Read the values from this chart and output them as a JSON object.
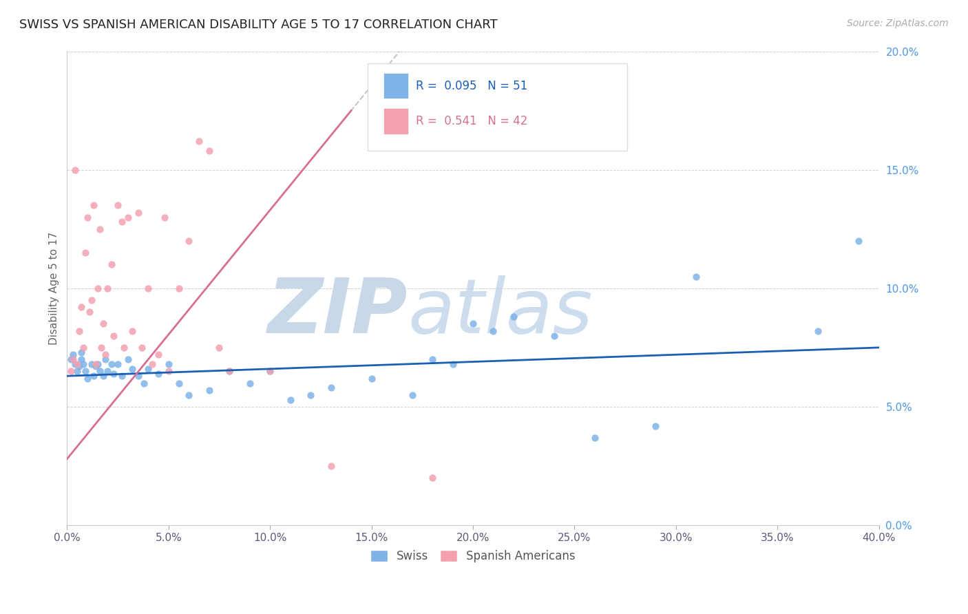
{
  "title": "SWISS VS SPANISH AMERICAN DISABILITY AGE 5 TO 17 CORRELATION CHART",
  "source_text": "Source: ZipAtlas.com",
  "ylabel": "Disability Age 5 to 17",
  "xlim": [
    0.0,
    0.4
  ],
  "ylim": [
    0.0,
    0.2
  ],
  "xticks": [
    0.0,
    0.05,
    0.1,
    0.15,
    0.2,
    0.25,
    0.3,
    0.35,
    0.4
  ],
  "yticks": [
    0.0,
    0.05,
    0.1,
    0.15,
    0.2
  ],
  "xtick_labels": [
    "0.0%",
    "5.0%",
    "10.0%",
    "15.0%",
    "20.0%",
    "25.0%",
    "30.0%",
    "35.0%",
    "40.0%"
  ],
  "ytick_labels": [
    "0.0%",
    "5.0%",
    "10.0%",
    "15.0%",
    "20.0%"
  ],
  "swiss_R": 0.095,
  "swiss_N": 51,
  "spanish_R": 0.541,
  "spanish_N": 42,
  "swiss_color": "#7EB3E8",
  "spanish_color": "#F4A0B0",
  "swiss_line_color": "#1a5fb4",
  "spanish_line_color": "#d87090",
  "watermark_color": "#d0dce8",
  "swiss_x": [
    0.002,
    0.003,
    0.004,
    0.005,
    0.006,
    0.007,
    0.007,
    0.008,
    0.009,
    0.01,
    0.012,
    0.013,
    0.014,
    0.015,
    0.016,
    0.018,
    0.019,
    0.02,
    0.022,
    0.023,
    0.025,
    0.027,
    0.03,
    0.032,
    0.035,
    0.038,
    0.04,
    0.045,
    0.05,
    0.055,
    0.06,
    0.07,
    0.08,
    0.09,
    0.1,
    0.11,
    0.12,
    0.13,
    0.15,
    0.17,
    0.18,
    0.19,
    0.2,
    0.21,
    0.22,
    0.24,
    0.26,
    0.29,
    0.31,
    0.37,
    0.39
  ],
  "swiss_y": [
    0.07,
    0.072,
    0.068,
    0.065,
    0.067,
    0.07,
    0.073,
    0.068,
    0.065,
    0.062,
    0.068,
    0.063,
    0.067,
    0.068,
    0.065,
    0.063,
    0.07,
    0.065,
    0.068,
    0.064,
    0.068,
    0.063,
    0.07,
    0.066,
    0.063,
    0.06,
    0.066,
    0.064,
    0.068,
    0.06,
    0.055,
    0.057,
    0.065,
    0.06,
    0.065,
    0.053,
    0.055,
    0.058,
    0.062,
    0.055,
    0.07,
    0.068,
    0.085,
    0.082,
    0.088,
    0.08,
    0.037,
    0.042,
    0.105,
    0.082,
    0.12
  ],
  "spanish_x": [
    0.002,
    0.003,
    0.004,
    0.005,
    0.006,
    0.007,
    0.008,
    0.009,
    0.01,
    0.011,
    0.012,
    0.013,
    0.014,
    0.015,
    0.016,
    0.017,
    0.018,
    0.019,
    0.02,
    0.022,
    0.023,
    0.025,
    0.027,
    0.028,
    0.03,
    0.032,
    0.035,
    0.037,
    0.04,
    0.042,
    0.045,
    0.048,
    0.05,
    0.055,
    0.06,
    0.065,
    0.07,
    0.075,
    0.08,
    0.1,
    0.13,
    0.18
  ],
  "spanish_y": [
    0.065,
    0.07,
    0.15,
    0.068,
    0.082,
    0.092,
    0.075,
    0.115,
    0.13,
    0.09,
    0.095,
    0.135,
    0.068,
    0.1,
    0.125,
    0.075,
    0.085,
    0.072,
    0.1,
    0.11,
    0.08,
    0.135,
    0.128,
    0.075,
    0.13,
    0.082,
    0.132,
    0.075,
    0.1,
    0.068,
    0.072,
    0.13,
    0.065,
    0.1,
    0.12,
    0.162,
    0.158,
    0.075,
    0.065,
    0.065,
    0.025,
    0.02
  ]
}
